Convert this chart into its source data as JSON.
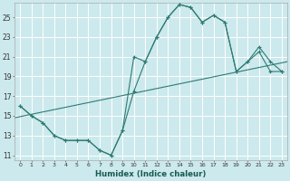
{
  "xlabel": "Humidex (Indice chaleur)",
  "bg_color": "#cce9ed",
  "grid_color": "#b8d8dc",
  "line_color": "#2d7b72",
  "xlim_min": -0.5,
  "xlim_max": 23.5,
  "ylim_min": 10.5,
  "ylim_max": 26.5,
  "xticks": [
    0,
    1,
    2,
    3,
    4,
    5,
    6,
    7,
    8,
    9,
    10,
    11,
    12,
    13,
    14,
    15,
    16,
    17,
    18,
    19,
    20,
    21,
    22,
    23
  ],
  "yticks": [
    11,
    13,
    15,
    17,
    19,
    21,
    23,
    25
  ],
  "curve_jagged_x": [
    0,
    1,
    2,
    3,
    4,
    5,
    6,
    7,
    8,
    9,
    10,
    11,
    12,
    13,
    14,
    15,
    16,
    17,
    18,
    19,
    20,
    21,
    22,
    23
  ],
  "curve_jagged_y": [
    16.0,
    15.0,
    14.3,
    13.0,
    12.5,
    12.5,
    12.5,
    11.5,
    11.0,
    13.5,
    21.0,
    20.5,
    23.0,
    25.0,
    26.3,
    26.0,
    24.5,
    25.2,
    24.5,
    19.5,
    20.5,
    21.5,
    19.5,
    19.5
  ],
  "curve_smooth_x": [
    0,
    1,
    2,
    3,
    4,
    5,
    6,
    7,
    8,
    9,
    10,
    11,
    12,
    13,
    14,
    15,
    16,
    17,
    18,
    19,
    20,
    21,
    22,
    23
  ],
  "curve_smooth_y": [
    16.0,
    15.0,
    14.3,
    13.0,
    12.5,
    12.5,
    12.5,
    11.5,
    11.0,
    13.5,
    17.5,
    20.5,
    23.0,
    25.0,
    26.3,
    26.0,
    24.5,
    25.2,
    24.5,
    19.5,
    20.5,
    22.0,
    20.5,
    19.5
  ],
  "trend_x": [
    -0.5,
    23.5
  ],
  "trend_y": [
    14.8,
    20.5
  ]
}
